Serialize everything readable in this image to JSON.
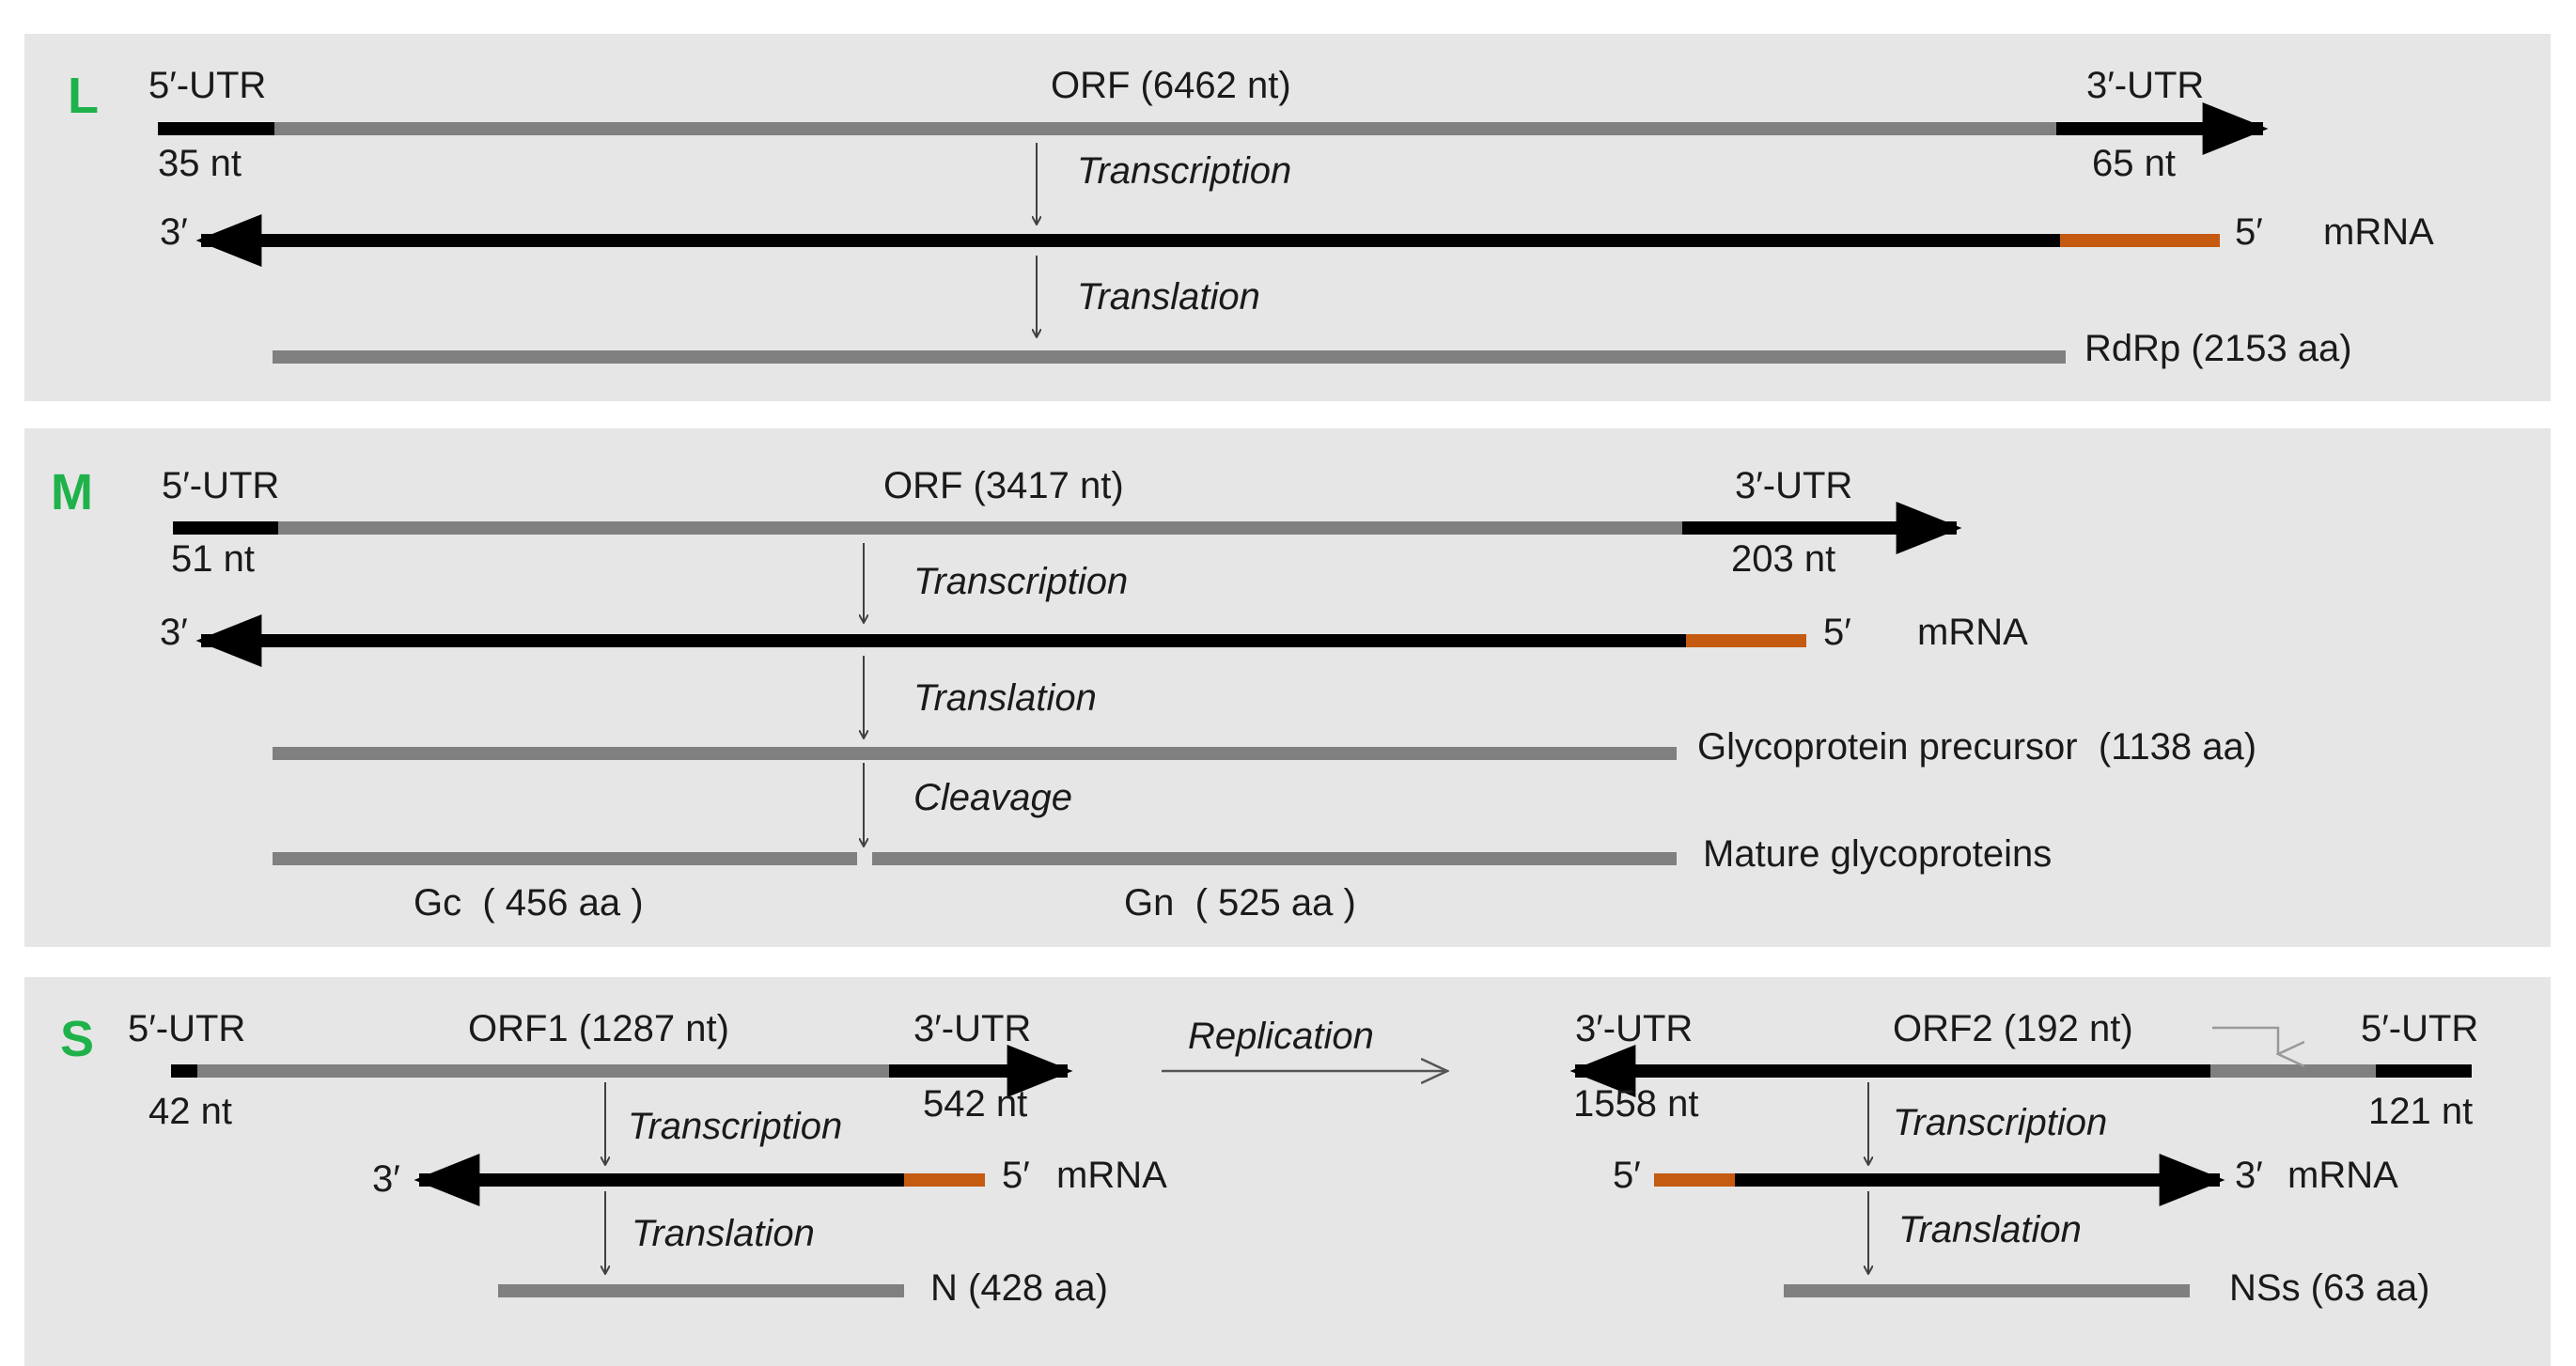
{
  "colors": {
    "panel": "#e6e6e6",
    "utr": "#000000",
    "orf": "#808080",
    "mrna": "#000000",
    "cap": "#c55a11",
    "segment_label": "#1fb24b",
    "arrow": "#404040"
  },
  "L": {
    "segment": "L",
    "utr5": "5′-UTR",
    "orf": "ORF (6462 nt)",
    "utr3": "3′-UTR",
    "utr5_len": "35 nt",
    "utr3_len": "65 nt",
    "transcription": "Transcription",
    "mrna_3": "3′",
    "mrna_5": "5′",
    "mrna": "mRNA",
    "translation": "Translation",
    "protein": "RdRp (2153 aa)"
  },
  "M": {
    "segment": "M",
    "utr5": "5′-UTR",
    "orf": "ORF (3417 nt)",
    "utr3": "3′-UTR",
    "utr5_len": "51 nt",
    "utr3_len": "203 nt",
    "transcription": "Transcription",
    "mrna_3": "3′",
    "mrna_5": "5′",
    "mrna": "mRNA",
    "translation": "Translation",
    "precursor": "Glycoprotein precursor  (1138 aa)",
    "cleavage": "Cleavage",
    "mature": "Mature glycoproteins",
    "gc": "Gc  ( 456 aa )",
    "gn": "Gn  ( 525 aa )"
  },
  "S": {
    "segment": "S",
    "utr5": "5′-UTR",
    "orf1": "ORF1 (1287 nt)",
    "utr3": "3′-UTR",
    "utr5_len": "42 nt",
    "utr3_len": "542 nt",
    "transcription": "Transcription",
    "mrna_3": "3′",
    "mrna_5": "5′",
    "mrna": "mRNA",
    "translation": "Translation",
    "protein1": "N (428 aa)",
    "replication": "Replication",
    "r_utr3": "3′-UTR",
    "orf2": "ORF2 (192 nt)",
    "r_utr5": "5′-UTR",
    "r_utr3_len": "1558 nt",
    "r_utr5_len": "121 nt",
    "r_transcription": "Transcription",
    "r_mrna_5": "5′",
    "r_mrna_3": "3′",
    "r_mrna": "mRNA",
    "r_translation": "Translation",
    "protein2": "NSs (63 aa)"
  }
}
